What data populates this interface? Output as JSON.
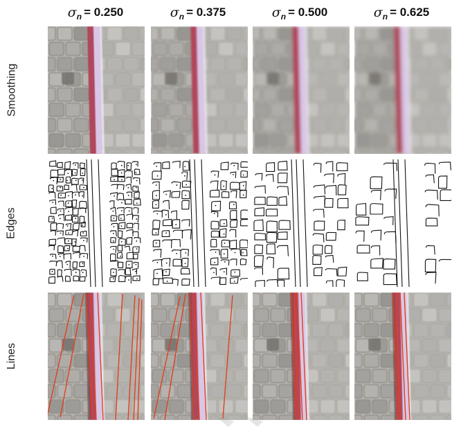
{
  "figure": {
    "columns": [
      {
        "symbol": "σ",
        "subscript": "n",
        "value": "= 0.250"
      },
      {
        "symbol": "σ",
        "subscript": "n",
        "value": "= 0.375"
      },
      {
        "symbol": "σ",
        "subscript": "n",
        "value": "= 0.500"
      },
      {
        "symbol": "σ",
        "subscript": "n",
        "value": "= 0.625"
      }
    ],
    "rows": [
      {
        "label": "Smoothing",
        "type": "smoothing"
      },
      {
        "label": "Edges",
        "type": "edges"
      },
      {
        "label": "Lines",
        "type": "lines"
      }
    ],
    "colors": {
      "pavement": "#b4b2ac",
      "pavement_dark": "#8d8a84",
      "stripe_red": "#b0465c",
      "stripe_light": "#d9c6e6",
      "detected_line": "#e0401e",
      "edge_ink": "#111111"
    }
  }
}
